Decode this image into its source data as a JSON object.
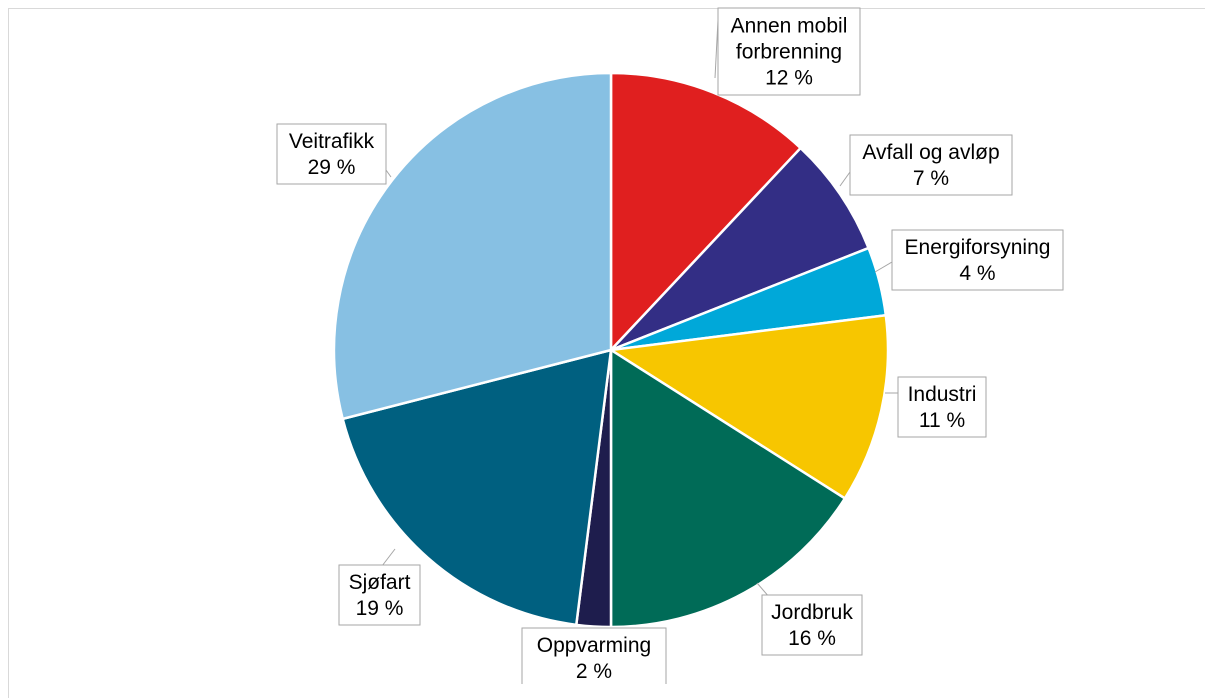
{
  "chart_data": {
    "type": "pie",
    "start_angle_deg": 0,
    "direction": "clockwise",
    "slices": [
      {
        "label_lines": [
          "Annen mobil",
          "forbrenning"
        ],
        "value_label": "12 %",
        "value": 12,
        "color": "#e01f1f"
      },
      {
        "label_lines": [
          "Avfall og avløp"
        ],
        "value_label": "7 %",
        "value": 7,
        "color": "#332e85"
      },
      {
        "label_lines": [
          "Energiforsyning"
        ],
        "value_label": "4 %",
        "value": 4,
        "color": "#00a8d9"
      },
      {
        "label_lines": [
          "Industri"
        ],
        "value_label": "11 %",
        "value": 11,
        "color": "#f7c600"
      },
      {
        "label_lines": [
          "Jordbruk"
        ],
        "value_label": "16 %",
        "value": 16,
        "color": "#006b57"
      },
      {
        "label_lines": [
          "Oppvarming"
        ],
        "value_label": "2 %",
        "value": 2,
        "color": "#1e1d4d"
      },
      {
        "label_lines": [
          "Sjøfart"
        ],
        "value_label": "19 %",
        "value": 19,
        "color": "#006080"
      },
      {
        "label_lines": [
          "Veitrafikk"
        ],
        "value_label": "29 %",
        "value": 29,
        "color": "#87c0e3"
      }
    ]
  }
}
